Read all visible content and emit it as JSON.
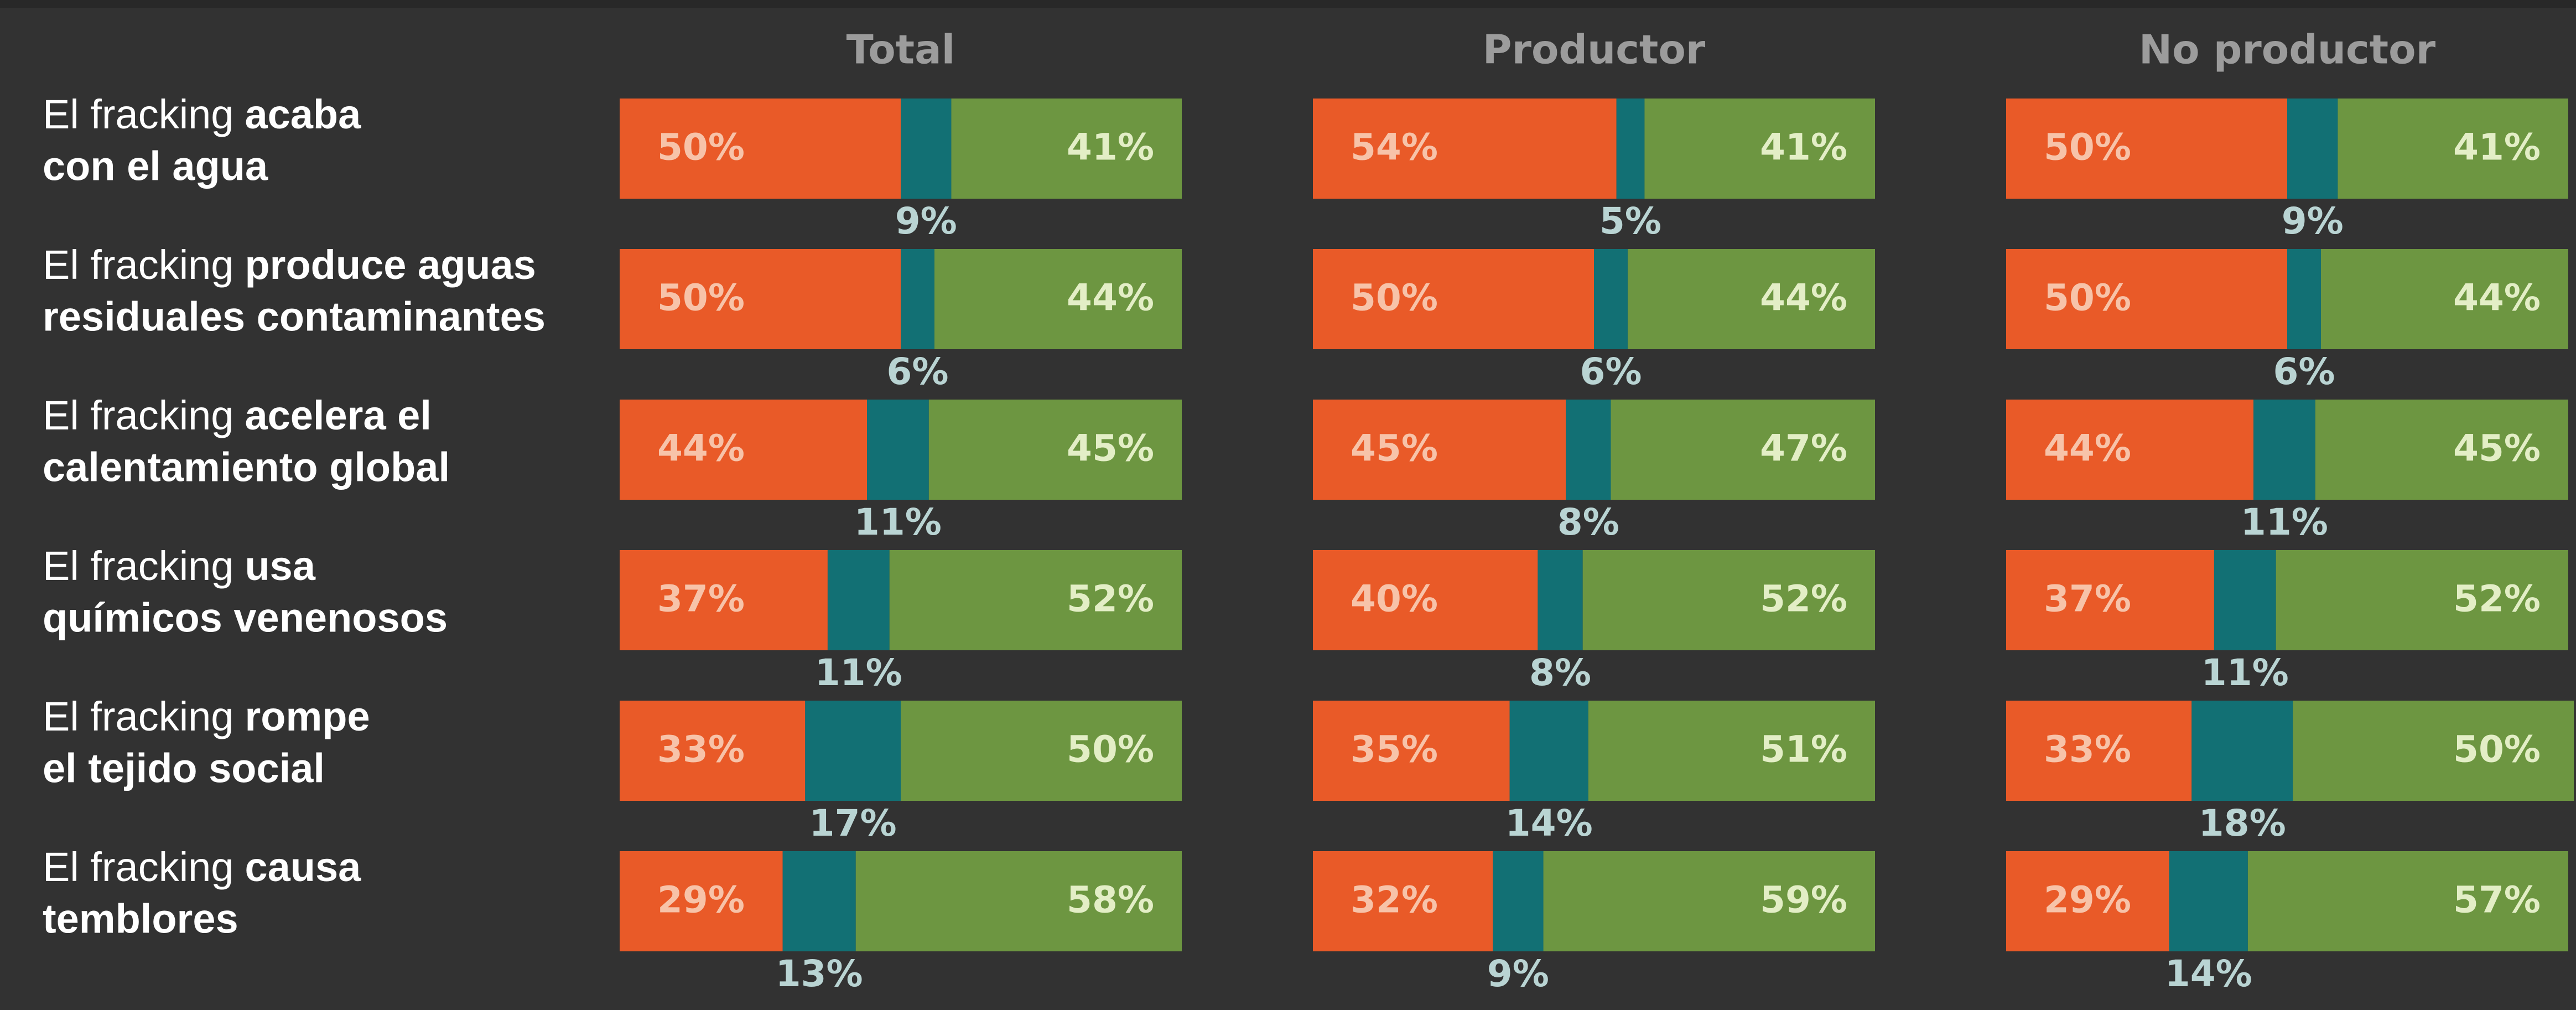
{
  "chart_data": {
    "type": "stacked-bar",
    "categories": [
      {
        "plain": "El fracking",
        "bold": [
          "acaba",
          "con el agua"
        ]
      },
      {
        "plain": "El fracking",
        "bold": [
          "produce aguas",
          "residuales contaminantes"
        ]
      },
      {
        "plain": "El fracking",
        "bold": [
          "acelera el",
          "calentamiento global"
        ]
      },
      {
        "plain": "El fracking",
        "bold": [
          "usa",
          "químicos venenosos"
        ]
      },
      {
        "plain": "El fracking",
        "bold": [
          "rompe",
          "el tejido social"
        ]
      },
      {
        "plain": "El fracking",
        "bold": [
          "causa",
          "temblores"
        ]
      }
    ],
    "xlim": [
      0,
      100
    ],
    "panels": [
      {
        "title": "Total",
        "series": [
          {
            "color": "#e95a28",
            "values": [
              50,
              50,
              44,
              37,
              33,
              29
            ],
            "value_labels": [
              "50%",
              "50%",
              "44%",
              "37%",
              "33%",
              "29%"
            ]
          },
          {
            "color": "#127074",
            "values": [
              9,
              6,
              11,
              11,
              17,
              13
            ],
            "value_labels": [
              "9%",
              "6%",
              "11%",
              "11%",
              "17%",
              "13%"
            ]
          },
          {
            "color": "#6d9641",
            "values": [
              41,
              44,
              45,
              52,
              50,
              58
            ],
            "value_labels": [
              "41%",
              "44%",
              "45%",
              "52%",
              "50%",
              "58%"
            ]
          }
        ]
      },
      {
        "title": "Productor",
        "series": [
          {
            "color": "#e95a28",
            "values": [
              54,
              50,
              45,
              40,
              35,
              32
            ],
            "value_labels": [
              "54%",
              "50%",
              "45%",
              "40%",
              "35%",
              "32%"
            ]
          },
          {
            "color": "#127074",
            "values": [
              5,
              6,
              8,
              8,
              14,
              9
            ],
            "value_labels": [
              "5%",
              "6%",
              "8%",
              "8%",
              "14%",
              "9%"
            ]
          },
          {
            "color": "#6d9641",
            "values": [
              41,
              44,
              47,
              52,
              51,
              59
            ],
            "value_labels": [
              "41%",
              "44%",
              "47%",
              "52%",
              "51%",
              "59%"
            ]
          }
        ]
      },
      {
        "title": "No productor",
        "series": [
          {
            "color": "#e95a28",
            "values": [
              50,
              50,
              44,
              37,
              33,
              29
            ],
            "value_labels": [
              "50%",
              "50%",
              "44%",
              "37%",
              "33%",
              "29%"
            ]
          },
          {
            "color": "#127074",
            "values": [
              9,
              6,
              11,
              11,
              18,
              14
            ],
            "value_labels": [
              "9%",
              "6%",
              "11%",
              "11%",
              "18%",
              "14%"
            ]
          },
          {
            "color": "#6d9641",
            "values": [
              41,
              44,
              45,
              52,
              50,
              57
            ],
            "value_labels": [
              "41%",
              "44%",
              "45%",
              "52%",
              "50%",
              "57%"
            ]
          }
        ]
      }
    ]
  }
}
